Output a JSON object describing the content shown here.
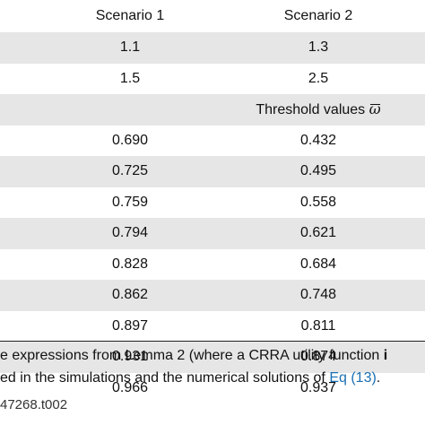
{
  "table": {
    "header": {
      "col1": "Scenario 1",
      "col2": "Scenario 2"
    },
    "param_rows": [
      {
        "col1": "1.1",
        "col2": "1.3"
      },
      {
        "col1": "1.5",
        "col2": "2.5"
      }
    ],
    "section_label": "Threshold values",
    "section_symbol": "ω",
    "rows": [
      {
        "col1": "0.690",
        "col2": "0.432"
      },
      {
        "col1": "0.725",
        "col2": "0.495"
      },
      {
        "col1": "0.759",
        "col2": "0.558"
      },
      {
        "col1": "0.794",
        "col2": "0.621"
      },
      {
        "col1": "0.828",
        "col2": "0.684"
      },
      {
        "col1": "0.862",
        "col2": "0.748"
      },
      {
        "col1": "0.897",
        "col2": "0.811"
      },
      {
        "col1": "0.931",
        "col2": "0.874"
      },
      {
        "col1": "0.966",
        "col2": "0.937"
      }
    ]
  },
  "footnote": {
    "line1_text": "e expressions from Lemma 2 (where a CRRA utility function ",
    "line1_bold": "i",
    "line2_text": "ed in the simulations and the numerical solutions of ",
    "line2_link": "Eq (13)",
    "line2_end": "."
  },
  "doi_fragment": "47268.t002"
}
